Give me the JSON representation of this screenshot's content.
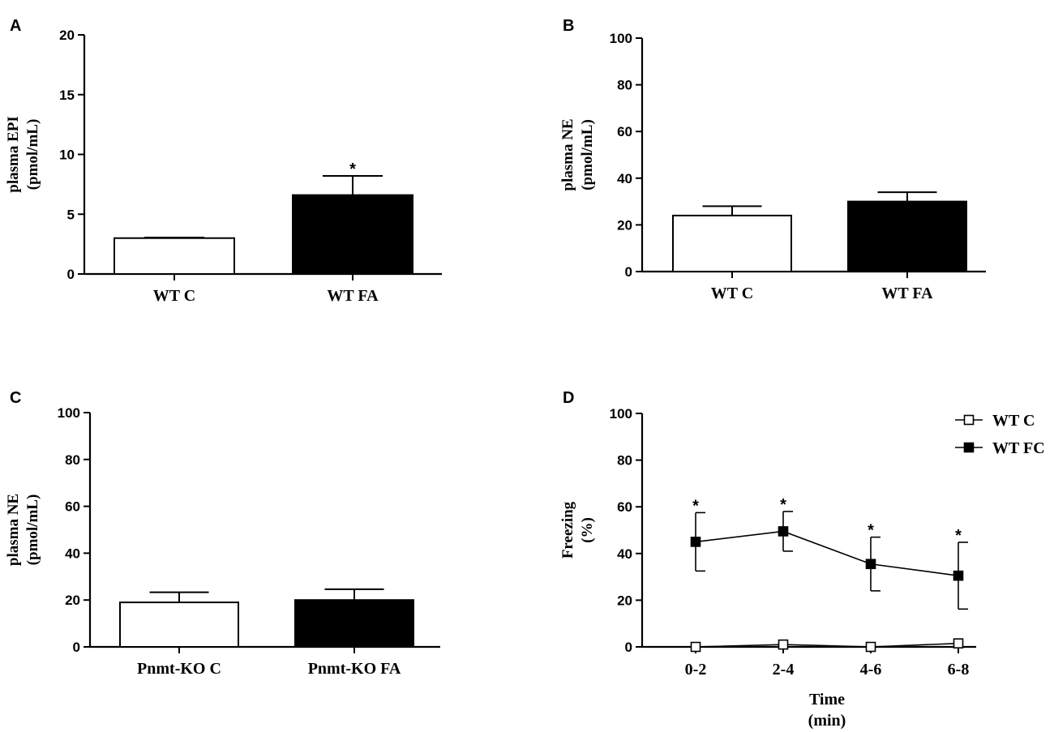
{
  "colors": {
    "ink": "#000000",
    "paper": "#ffffff"
  },
  "chart_data": [
    {
      "panel": "A",
      "type": "bar",
      "categories": [
        "WT C",
        "WT FA"
      ],
      "values": [
        3.0,
        6.6
      ],
      "errors": [
        0.05,
        1.6
      ],
      "fills": [
        "#ffffff",
        "#000000"
      ],
      "significant": [
        false,
        true
      ],
      "star": "*",
      "ylabel_line1": "plasma EPI",
      "ylabel_line2": "(pmol/mL)",
      "ylim": [
        0,
        20
      ],
      "yticks": [
        0,
        5,
        10,
        15,
        20
      ]
    },
    {
      "panel": "B",
      "type": "bar",
      "categories": [
        "WT C",
        "WT FA"
      ],
      "values": [
        24,
        30
      ],
      "errors": [
        4,
        4
      ],
      "fills": [
        "#ffffff",
        "#000000"
      ],
      "significant": [
        false,
        false
      ],
      "star": "*",
      "ylabel_line1": "plasma NE",
      "ylabel_line2": "(pmol/mL)",
      "ylim": [
        0,
        100
      ],
      "yticks": [
        0,
        20,
        40,
        60,
        80,
        100
      ]
    },
    {
      "panel": "C",
      "type": "bar",
      "categories": [
        "Pnmt-KO C",
        "Pnmt-KO FA"
      ],
      "values": [
        19,
        20
      ],
      "errors": [
        4.3,
        4.6
      ],
      "fills": [
        "#ffffff",
        "#000000"
      ],
      "significant": [
        false,
        false
      ],
      "star": "*",
      "ylabel_line1": "plasma NE",
      "ylabel_line2": "(pmol/mL)",
      "ylim": [
        0,
        100
      ],
      "yticks": [
        0,
        20,
        40,
        60,
        80,
        100
      ]
    },
    {
      "panel": "D",
      "type": "line",
      "categories": [
        "0-2",
        "2-4",
        "4-6",
        "6-8"
      ],
      "xlabel_line1": "Time",
      "xlabel_line2": "(min)",
      "ylabel_line1": "Freezing",
      "ylabel_line2": "(%)",
      "ylim": [
        0,
        100
      ],
      "yticks": [
        0,
        20,
        40,
        60,
        80,
        100
      ],
      "star": "*",
      "series": [
        {
          "name": "WT C",
          "marker": "open-square",
          "values": [
            0,
            1,
            0,
            1.5
          ],
          "errors": [
            0,
            0,
            0,
            0
          ],
          "significant": [
            false,
            false,
            false,
            false
          ]
        },
        {
          "name": "WT FC",
          "marker": "filled-square",
          "values": [
            45,
            49.5,
            35.5,
            30.5
          ],
          "errors": [
            12.5,
            8.5,
            11.5,
            14.3
          ],
          "significant": [
            true,
            true,
            true,
            true
          ]
        }
      ]
    }
  ]
}
